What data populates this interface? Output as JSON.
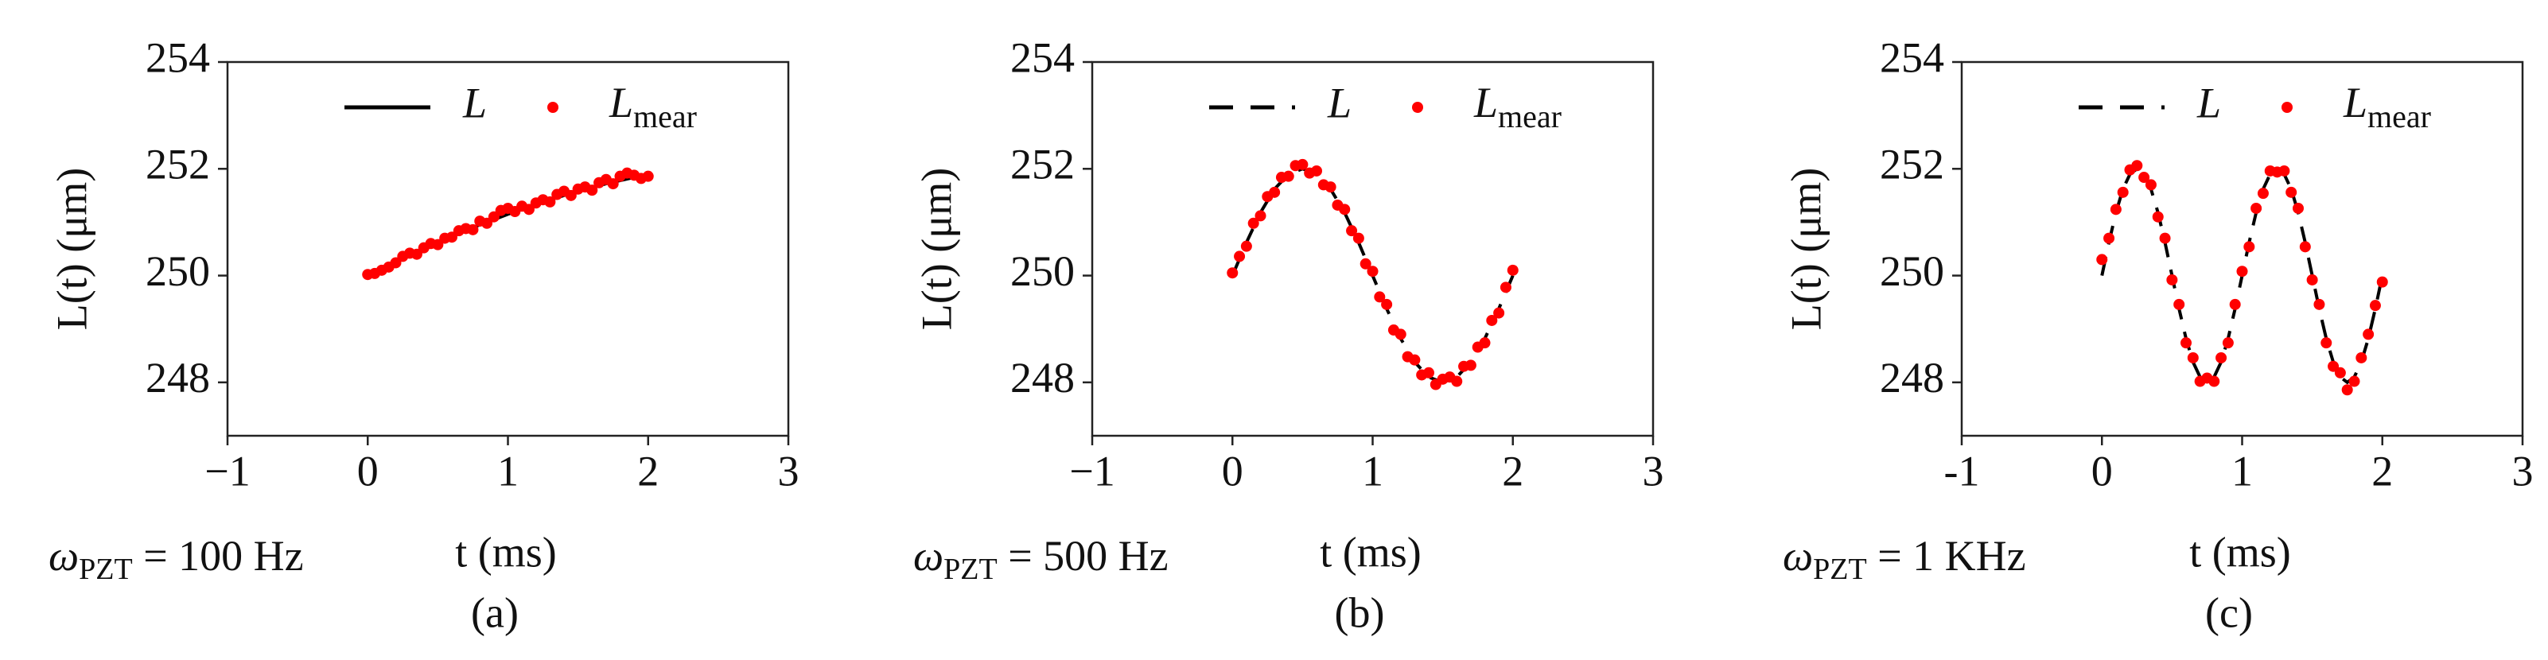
{
  "chart_data": [
    {
      "type": "line-scatter",
      "panel": "(a)",
      "ylabel": "L(t) (μm)",
      "xlabel": "t (ms)",
      "annotation": {
        "symbol": "ω",
        "sub": "PZT",
        "text": " = 100 Hz"
      },
      "xlim": [
        -1,
        3
      ],
      "ylim": [
        247,
        254
      ],
      "xticks": [
        {
          "value": -1,
          "label": "−1"
        },
        0,
        1,
        2,
        3
      ],
      "yticks": [
        248,
        250,
        252,
        254
      ],
      "series": [
        {
          "name": "L",
          "kind": "line",
          "linestyle": "solid",
          "color": "#000000",
          "x": [
            0,
            0.1,
            0.2,
            0.3,
            0.4,
            0.5,
            0.6,
            0.7,
            0.8,
            0.9,
            1,
            1.1,
            1.2,
            1.3,
            1.4,
            1.5,
            1.6,
            1.7,
            1.8,
            1.9,
            2
          ],
          "values": [
            250.0,
            250.13,
            250.26,
            250.39,
            250.51,
            250.63,
            250.74,
            250.85,
            250.95,
            251.05,
            251.15,
            251.24,
            251.33,
            251.42,
            251.5,
            251.58,
            251.65,
            251.72,
            251.78,
            251.84,
            251.9
          ]
        },
        {
          "name": "L",
          "name_sub": "mear",
          "kind": "scatter",
          "color": "#ff0000",
          "x": [
            0,
            0.05,
            0.1,
            0.15,
            0.2,
            0.25,
            0.3,
            0.35,
            0.4,
            0.45,
            0.5,
            0.55,
            0.6,
            0.65,
            0.7,
            0.75,
            0.8,
            0.85,
            0.9,
            0.95,
            1,
            1.05,
            1.1,
            1.15,
            1.2,
            1.25,
            1.3,
            1.35,
            1.4,
            1.45,
            1.5,
            1.55,
            1.6,
            1.65,
            1.7,
            1.75,
            1.8,
            1.85,
            1.9,
            1.95,
            2
          ],
          "values": [
            250.02,
            250.04,
            250.1,
            250.16,
            250.24,
            250.36,
            250.42,
            250.4,
            250.52,
            250.6,
            250.58,
            250.7,
            250.72,
            250.84,
            250.88,
            250.86,
            251.02,
            250.98,
            251.1,
            251.22,
            251.26,
            251.2,
            251.3,
            251.24,
            251.36,
            251.42,
            251.38,
            251.52,
            251.58,
            251.5,
            251.62,
            251.66,
            251.6,
            251.74,
            251.8,
            251.72,
            251.86,
            251.92,
            251.88,
            251.82,
            251.86
          ]
        }
      ]
    },
    {
      "type": "line-scatter",
      "panel": "(b)",
      "ylabel": "L(t) (μm)",
      "xlabel": "t (ms)",
      "annotation": {
        "symbol": "ω",
        "sub": "PZT",
        "text": " = 500 Hz"
      },
      "xlim": [
        -1,
        3
      ],
      "ylim": [
        247,
        254
      ],
      "xticks": [
        {
          "value": -1,
          "label": "−1"
        },
        0,
        1,
        2,
        3
      ],
      "yticks": [
        248,
        250,
        252,
        254
      ],
      "series": [
        {
          "name": "L",
          "kind": "line",
          "linestyle": "dashed",
          "color": "#000000",
          "x": [
            0,
            0.1,
            0.2,
            0.3,
            0.4,
            0.5,
            0.6,
            0.7,
            0.8,
            0.9,
            1,
            1.1,
            1.2,
            1.3,
            1.4,
            1.5,
            1.6,
            1.7,
            1.8,
            1.9,
            2
          ],
          "values": [
            250.0,
            250.62,
            251.18,
            251.62,
            251.9,
            252.0,
            251.9,
            251.62,
            251.18,
            250.62,
            250.0,
            249.38,
            248.82,
            248.38,
            248.1,
            248.0,
            248.1,
            248.38,
            248.82,
            249.38,
            250.0
          ]
        },
        {
          "name": "L",
          "name_sub": "mear",
          "kind": "scatter",
          "color": "#ff0000",
          "x": [
            0,
            0.05,
            0.1,
            0.15,
            0.2,
            0.25,
            0.3,
            0.35,
            0.4,
            0.45,
            0.5,
            0.55,
            0.6,
            0.65,
            0.7,
            0.75,
            0.8,
            0.85,
            0.9,
            0.95,
            1,
            1.05,
            1.1,
            1.15,
            1.2,
            1.25,
            1.3,
            1.35,
            1.4,
            1.45,
            1.5,
            1.55,
            1.6,
            1.65,
            1.7,
            1.75,
            1.8,
            1.85,
            1.9,
            1.95,
            2
          ],
          "values": [
            250.05,
            250.36,
            250.55,
            250.98,
            251.12,
            251.48,
            251.56,
            251.84,
            251.86,
            252.06,
            252.08,
            251.92,
            251.96,
            251.7,
            251.66,
            251.32,
            251.24,
            250.84,
            250.7,
            250.22,
            250.08,
            249.6,
            249.46,
            248.98,
            248.9,
            248.48,
            248.42,
            248.14,
            248.18,
            247.96,
            248.06,
            248.1,
            248.02,
            248.3,
            248.32,
            248.66,
            248.74,
            249.16,
            249.3,
            249.78,
            250.1
          ]
        }
      ]
    },
    {
      "type": "line-scatter",
      "panel": "(c)",
      "ylabel": "L(t) (μm)",
      "xlabel": "t (ms)",
      "annotation": {
        "symbol": "ω",
        "sub": "PZT",
        "text": " = 1 KHz"
      },
      "xlim": [
        -1,
        3
      ],
      "ylim": [
        247,
        254
      ],
      "xticks": [
        -1,
        0,
        1,
        2,
        3
      ],
      "yticks": [
        248,
        250,
        252,
        254
      ],
      "series": [
        {
          "name": "L",
          "kind": "line",
          "linestyle": "dashed",
          "color": "#000000",
          "x": [
            0,
            0.05,
            0.1,
            0.15,
            0.2,
            0.25,
            0.3,
            0.35,
            0.4,
            0.45,
            0.5,
            0.55,
            0.6,
            0.65,
            0.7,
            0.75,
            0.8,
            0.85,
            0.9,
            0.95,
            1,
            1.05,
            1.1,
            1.15,
            1.2,
            1.25,
            1.3,
            1.35,
            1.4,
            1.45,
            1.5,
            1.55,
            1.6,
            1.65,
            1.7,
            1.75,
            1.8,
            1.85,
            1.9,
            1.95,
            2
          ],
          "values": [
            250.0,
            250.62,
            251.18,
            251.62,
            251.9,
            252.0,
            251.9,
            251.62,
            251.18,
            250.62,
            250.0,
            249.38,
            248.82,
            248.38,
            248.1,
            248.0,
            248.1,
            248.38,
            248.82,
            249.38,
            250.0,
            250.62,
            251.18,
            251.62,
            251.9,
            252.0,
            251.9,
            251.62,
            251.18,
            250.62,
            250.0,
            249.38,
            248.82,
            248.38,
            248.1,
            248.0,
            248.1,
            248.38,
            248.82,
            249.38,
            250.0
          ]
        },
        {
          "name": "L",
          "name_sub": "mear",
          "kind": "scatter",
          "color": "#ff0000",
          "x": [
            0,
            0.05,
            0.1,
            0.15,
            0.2,
            0.25,
            0.3,
            0.35,
            0.4,
            0.45,
            0.5,
            0.55,
            0.6,
            0.65,
            0.7,
            0.75,
            0.8,
            0.85,
            0.9,
            0.95,
            1,
            1.05,
            1.1,
            1.15,
            1.2,
            1.25,
            1.3,
            1.35,
            1.4,
            1.45,
            1.5,
            1.55,
            1.6,
            1.65,
            1.7,
            1.75,
            1.8,
            1.85,
            1.9,
            1.95,
            2
          ],
          "values": [
            250.3,
            250.7,
            251.24,
            251.56,
            251.98,
            252.06,
            251.84,
            251.7,
            251.1,
            250.7,
            249.92,
            249.46,
            248.74,
            248.46,
            248.02,
            248.08,
            248.02,
            248.46,
            248.74,
            249.46,
            250.08,
            250.54,
            251.26,
            251.54,
            251.96,
            251.94,
            251.96,
            251.56,
            251.26,
            250.54,
            249.92,
            249.46,
            248.74,
            248.3,
            248.18,
            247.86,
            248.02,
            248.46,
            248.9,
            249.44,
            249.88
          ]
        }
      ]
    }
  ]
}
